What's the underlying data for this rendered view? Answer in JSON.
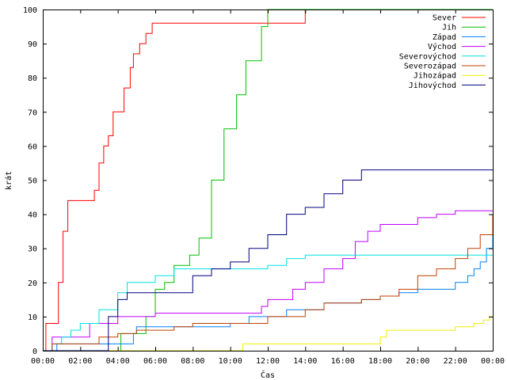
{
  "chart_data": {
    "type": "line",
    "xlabel": "Čas",
    "ylabel": "krát",
    "xlim": [
      0,
      1440
    ],
    "ylim": [
      0,
      100
    ],
    "x_ticks": [
      {
        "label": "00:00",
        "t": 0
      },
      {
        "label": "02:00",
        "t": 120
      },
      {
        "label": "04:00",
        "t": 240
      },
      {
        "label": "06:00",
        "t": 360
      },
      {
        "label": "08:00",
        "t": 480
      },
      {
        "label": "10:00",
        "t": 600
      },
      {
        "label": "12:00",
        "t": 720
      },
      {
        "label": "14:00",
        "t": 840
      },
      {
        "label": "16:00",
        "t": 960
      },
      {
        "label": "18:00",
        "t": 1080
      },
      {
        "label": "20:00",
        "t": 1200
      },
      {
        "label": "22:00",
        "t": 1320
      },
      {
        "label": "00:00",
        "t": 1440
      }
    ],
    "y_ticks": [
      0,
      10,
      20,
      30,
      40,
      50,
      60,
      70,
      80,
      90,
      100
    ],
    "grid": false,
    "legend_position": "top-right",
    "series": [
      {
        "name": "Sever",
        "color": "#ff0000",
        "x": [
          0,
          10,
          20,
          40,
          50,
          65,
          80,
          95,
          110,
          150,
          165,
          180,
          195,
          210,
          225,
          245,
          260,
          280,
          290,
          310,
          330,
          350,
          360,
          380,
          390,
          840,
          1440
        ],
        "y": [
          0,
          8,
          8,
          8,
          20,
          35,
          44,
          44,
          44,
          44,
          47,
          55,
          60,
          63,
          70,
          70,
          77,
          83,
          87,
          90,
          93,
          96,
          96,
          96,
          96,
          100,
          100
        ]
      },
      {
        "name": "Jih",
        "color": "#00c000",
        "x": [
          0,
          200,
          250,
          330,
          360,
          390,
          420,
          470,
          500,
          540,
          580,
          620,
          650,
          700,
          720,
          760,
          800,
          1440
        ],
        "y": [
          0,
          0,
          5,
          10,
          18,
          20,
          25,
          28,
          33,
          50,
          65,
          75,
          85,
          95,
          100,
          100,
          100,
          100
        ],
        "seq": [
          0,
          20,
          25,
          33,
          36,
          39,
          42,
          47,
          50,
          54,
          58,
          62,
          65,
          70,
          72,
          76,
          80,
          144
        ]
      },
      {
        "name": "Západ",
        "color": "#0080ff",
        "x": [
          0,
          45,
          55,
          270,
          290,
          300,
          600,
          660,
          720,
          780,
          840,
          900,
          960,
          1020,
          1080,
          1140,
          1200,
          1260,
          1320,
          1360,
          1380,
          1400,
          1420,
          1440
        ],
        "y": [
          0,
          2,
          2,
          2,
          5,
          7,
          8,
          10,
          10,
          12,
          12,
          14,
          14,
          15,
          16,
          17,
          18,
          18,
          20,
          22,
          24,
          26,
          30,
          38
        ]
      },
      {
        "name": "Východ",
        "color": "#c000ff",
        "x": [
          0,
          30,
          120,
          150,
          240,
          300,
          360,
          660,
          680,
          700,
          720,
          760,
          800,
          840,
          900,
          960,
          1000,
          1040,
          1080,
          1140,
          1200,
          1260,
          1320,
          1380,
          1440
        ],
        "y": [
          0,
          4,
          4,
          8,
          10,
          10,
          11,
          11,
          11,
          13,
          15,
          15,
          18,
          20,
          24,
          27,
          32,
          35,
          37,
          37,
          39,
          40,
          41,
          41,
          41
        ]
      },
      {
        "name": "Severovýchod",
        "color": "#00e0e0",
        "x": [
          0,
          30,
          60,
          90,
          120,
          180,
          240,
          270,
          300,
          360,
          420,
          480,
          540,
          600,
          660,
          720,
          780,
          840,
          900,
          960,
          1440
        ],
        "y": [
          0,
          2,
          4,
          6,
          8,
          12,
          17,
          20,
          20,
          22,
          24,
          24,
          24,
          24,
          24,
          25,
          27,
          28,
          28,
          28,
          28
        ]
      },
      {
        "name": "Severozápad",
        "color": "#c04000",
        "x": [
          0,
          30,
          60,
          120,
          180,
          240,
          300,
          360,
          420,
          480,
          540,
          600,
          660,
          720,
          780,
          840,
          900,
          960,
          1020,
          1080,
          1140,
          1200,
          1260,
          1320,
          1360,
          1400,
          1440
        ],
        "y": [
          0,
          2,
          2,
          2,
          4,
          5,
          6,
          6,
          7,
          8,
          8,
          8,
          8,
          10,
          10,
          12,
          14,
          14,
          15,
          16,
          18,
          22,
          24,
          27,
          30,
          34,
          40
        ]
      },
      {
        "name": "Jihozápad",
        "color": "#f0f000",
        "x": [
          0,
          620,
          640,
          1070,
          1080,
          1100,
          1180,
          1240,
          1320,
          1380,
          1410,
          1430,
          1440
        ],
        "y": [
          0,
          0,
          2,
          2,
          4,
          6,
          6,
          6,
          7,
          8,
          9,
          10,
          10
        ]
      },
      {
        "name": "Jihovýchod",
        "color": "#000080",
        "x": [
          0,
          30,
          60,
          90,
          120,
          150,
          180,
          210,
          240,
          270,
          300,
          360,
          420,
          480,
          540,
          600,
          660,
          720,
          780,
          840,
          900,
          960,
          1020,
          1080,
          1440
        ],
        "y": [
          0,
          0,
          0,
          0,
          0,
          0,
          0,
          10,
          15,
          17,
          17,
          17,
          17,
          22,
          24,
          26,
          30,
          34,
          40,
          42,
          46,
          50,
          53,
          53,
          53
        ]
      }
    ]
  }
}
